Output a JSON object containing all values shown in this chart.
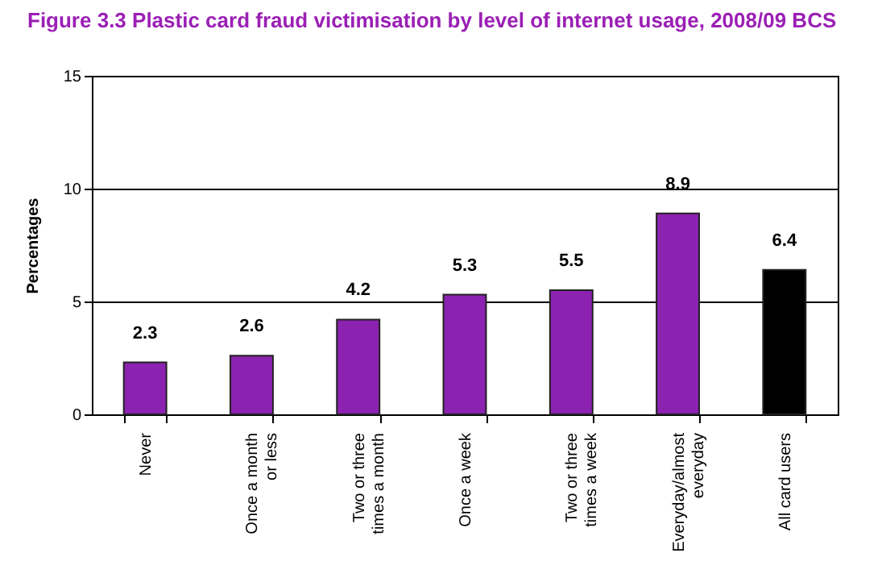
{
  "chart_data": {
    "type": "bar",
    "title": "Figure 3.3 Plastic card fraud victimisation by level of internet usage, 2008/09 BCS",
    "ylabel": "Percentages",
    "categories": [
      "Never",
      "Once a month or less",
      "Two or three times a month",
      "Once a week",
      "Two or three times a week",
      "Everyday/almost everyday",
      "All card users"
    ],
    "values": [
      2.3,
      2.6,
      4.2,
      5.3,
      5.5,
      8.9,
      6.4
    ],
    "colors": [
      "#8b22b0",
      "#8b22b0",
      "#8b22b0",
      "#8b22b0",
      "#8b22b0",
      "#8b22b0",
      "#000000"
    ],
    "ylim": [
      0,
      15
    ],
    "yticks": [
      0,
      5,
      10,
      15
    ],
    "grid": "y",
    "data_labels": true
  }
}
